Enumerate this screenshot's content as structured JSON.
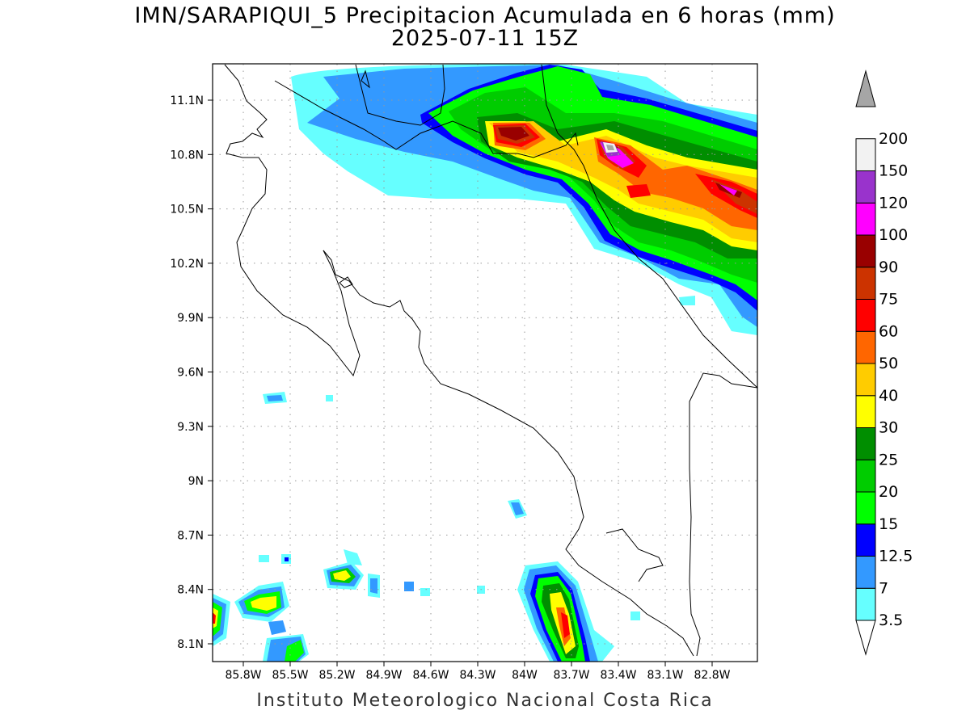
{
  "header": {
    "title": "IMN/SARAPIQUI_5 Precipitacion Acumulada en 6 horas (mm)",
    "subtitle": "2025-07-11 15Z"
  },
  "map": {
    "lat_labels": [
      "11.1N",
      "10.8N",
      "10.5N",
      "10.2N",
      "9.9N",
      "9.6N",
      "9.3N",
      "9N",
      "8.7N",
      "8.4N",
      "8.1N"
    ],
    "lon_labels": [
      "85.8W",
      "85.5W",
      "85.2W",
      "84.9W",
      "84.6W",
      "84.3W",
      "84W",
      "83.7W",
      "83.4W",
      "83.1W",
      "82.8W"
    ],
    "grid": true
  },
  "colorbar": {
    "levels": [
      {
        "label": "3.5",
        "color": "#66ffff"
      },
      {
        "label": "7",
        "color": "#3399ff"
      },
      {
        "label": "12.5",
        "color": "#0000ff"
      },
      {
        "label": "15",
        "color": "#00ff00"
      },
      {
        "label": "20",
        "color": "#00cc00"
      },
      {
        "label": "25",
        "color": "#008e00"
      },
      {
        "label": "30",
        "color": "#ffff00"
      },
      {
        "label": "40",
        "color": "#ffcc00"
      },
      {
        "label": "50",
        "color": "#ff6600"
      },
      {
        "label": "60",
        "color": "#ff0000"
      },
      {
        "label": "75",
        "color": "#cc3300"
      },
      {
        "label": "90",
        "color": "#990000"
      },
      {
        "label": "100",
        "color": "#ff00ff"
      },
      {
        "label": "120",
        "color": "#9933cc"
      },
      {
        "label": "150",
        "color": "#f2f2f2"
      },
      {
        "label": "200",
        "color": "#a6a6a6"
      }
    ]
  },
  "footer": {
    "text": "Instituto Meteorologico Nacional Costa Rica"
  }
}
